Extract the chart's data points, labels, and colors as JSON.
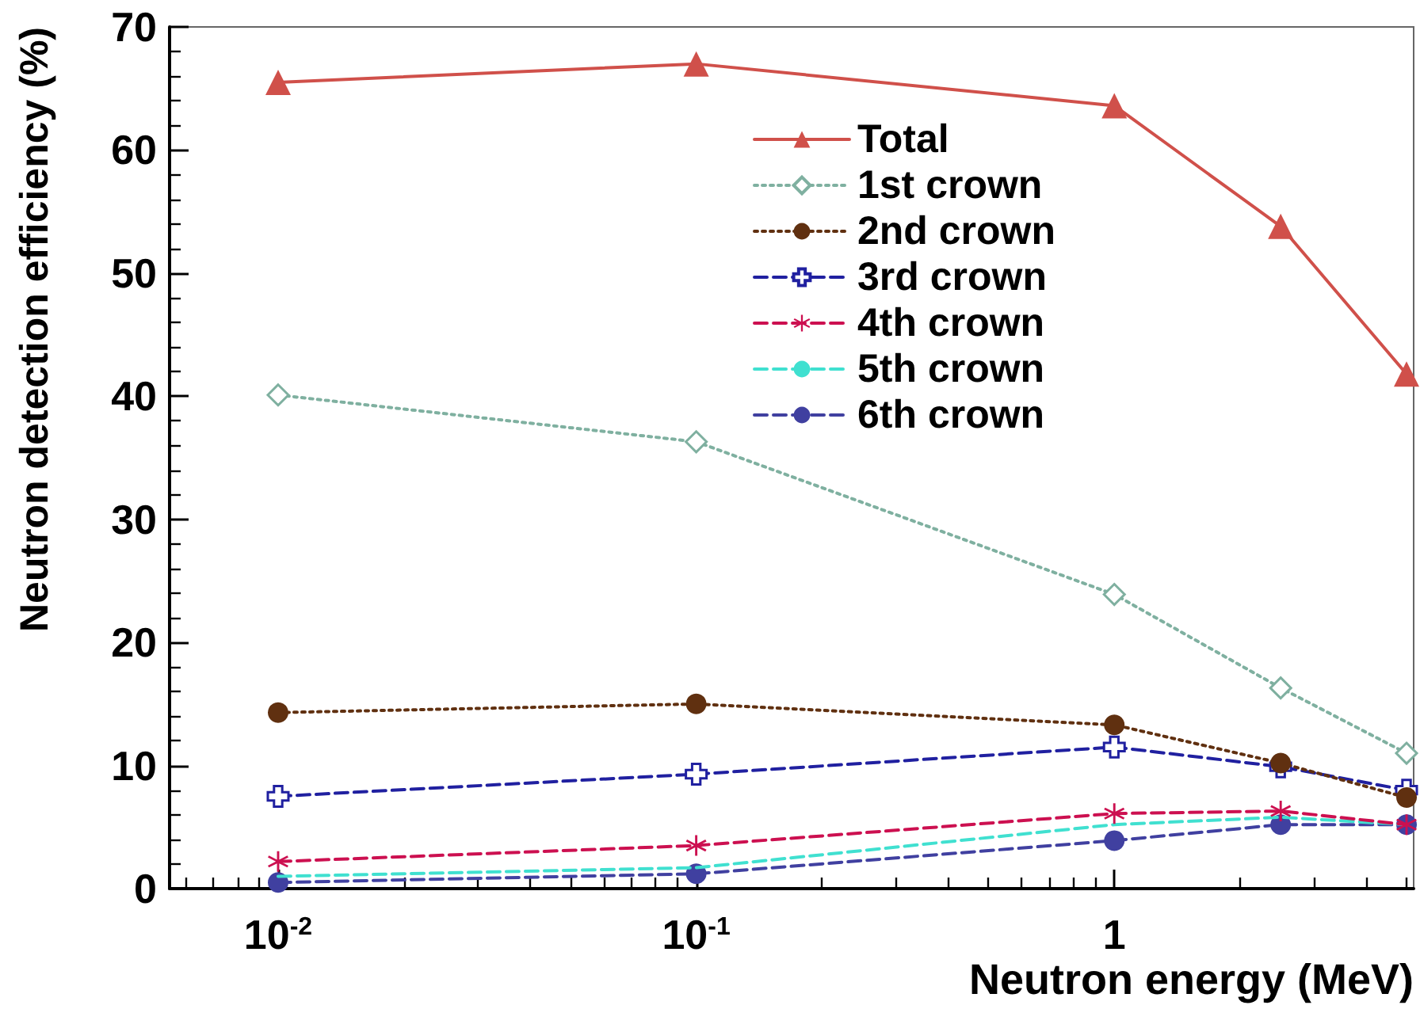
{
  "chart_data": {
    "type": "line",
    "xlabel": "Neutron energy (MeV)",
    "ylabel": "Neutron detection efficiency (%)",
    "x": [
      0.01,
      0.1,
      1,
      2.5,
      5
    ],
    "series": [
      {
        "name": "Total",
        "color": "#d0504a",
        "marker": "triangle",
        "line_style": "solid",
        "values": [
          65.5,
          67.0,
          63.6,
          53.8,
          41.8
        ]
      },
      {
        "name": "1st crown",
        "color": "#7fb0a0",
        "marker": "diamond",
        "line_style": "dotted",
        "values": [
          40.1,
          36.3,
          23.9,
          16.3,
          11.0
        ]
      },
      {
        "name": "2nd crown",
        "color": "#603010",
        "marker": "circle",
        "line_style": "dotted",
        "values": [
          14.3,
          15.0,
          13.3,
          10.2,
          7.4
        ]
      },
      {
        "name": "3rd crown",
        "color": "#2020a0",
        "marker": "cross",
        "line_style": "dashed",
        "values": [
          7.5,
          9.3,
          11.5,
          9.9,
          8.0
        ]
      },
      {
        "name": "4th crown",
        "color": "#cc1050",
        "marker": "star",
        "line_style": "dashed",
        "values": [
          2.2,
          3.5,
          6.1,
          6.3,
          5.2
        ]
      },
      {
        "name": "5th crown",
        "color": "#40e0d0",
        "marker": "none",
        "line_style": "dashed",
        "values": [
          1.0,
          1.7,
          5.2,
          5.8,
          5.2
        ]
      },
      {
        "name": "6th crown",
        "color": "#4040a0",
        "marker": "circle",
        "line_style": "dashed",
        "values": [
          0.5,
          1.2,
          3.9,
          5.2,
          5.2
        ]
      }
    ],
    "log": "x",
    "xlim": [
      0.0055,
      5.2
    ],
    "ylim": [
      0,
      70
    ],
    "xticks": [
      {
        "value": 0.006,
        "label": null
      },
      {
        "value": 0.007,
        "label": null
      },
      {
        "value": 0.008,
        "label": null
      },
      {
        "value": 0.009,
        "label": null
      },
      {
        "value": 0.01,
        "label": "10$^{-2}$"
      },
      {
        "value": 0.02,
        "label": null
      },
      {
        "value": 0.03,
        "label": null
      },
      {
        "value": 0.04,
        "label": null
      },
      {
        "value": 0.05,
        "label": null
      },
      {
        "value": 0.06,
        "label": null
      },
      {
        "value": 0.07,
        "label": null
      },
      {
        "value": 0.08,
        "label": null
      },
      {
        "value": 0.09,
        "label": null
      },
      {
        "value": 0.1,
        "label": "10$^{-1}$"
      },
      {
        "value": 0.2,
        "label": null
      },
      {
        "value": 0.3,
        "label": null
      },
      {
        "value": 0.4,
        "label": null
      },
      {
        "value": 0.5,
        "label": null
      },
      {
        "value": 0.6,
        "label": null
      },
      {
        "value": 0.7,
        "label": null
      },
      {
        "value": 0.8,
        "label": null
      },
      {
        "value": 0.9,
        "label": null
      },
      1,
      {
        "value": 2,
        "label": null
      },
      {
        "value": 3,
        "label": null
      },
      {
        "value": 4,
        "label": null
      },
      {
        "value": 5,
        "label": null
      }
    ],
    "yticks": [
      0,
      {
        "value": 2,
        "label": null
      },
      {
        "value": 4,
        "label": null
      },
      {
        "value": 6,
        "label": null
      },
      {
        "value": 8,
        "label": null
      },
      10,
      {
        "value": 12,
        "label": null
      },
      {
        "value": 14,
        "label": null
      },
      {
        "value": 16,
        "label": null
      },
      {
        "value": 18,
        "label": null
      },
      20,
      {
        "value": 22,
        "label": null
      },
      {
        "value": 24,
        "label": null
      },
      {
        "value": 26,
        "label": null
      },
      {
        "value": 28,
        "label": null
      },
      30,
      {
        "value": 32,
        "label": null
      },
      {
        "value": 34,
        "label": null
      },
      {
        "value": 36,
        "label": null
      },
      {
        "value": 38,
        "label": null
      },
      40,
      {
        "value": 42,
        "label": null
      },
      {
        "value": 44,
        "label": null
      },
      {
        "value": 46,
        "label": null
      },
      {
        "value": 48,
        "label": null
      },
      50,
      {
        "value": 52,
        "label": null
      },
      {
        "value": 54,
        "label": null
      },
      {
        "value": 56,
        "label": null
      },
      {
        "value": 58,
        "label": null
      },
      60,
      {
        "value": 62,
        "label": null
      },
      {
        "value": 64,
        "label": null
      },
      {
        "value": 66,
        "label": null
      },
      {
        "value": 68,
        "label": null
      },
      70
    ],
    "grid": false,
    "legend": "top right"
  }
}
